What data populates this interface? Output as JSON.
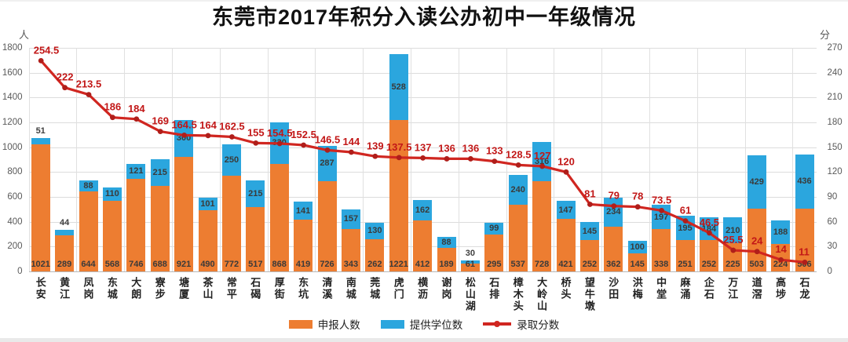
{
  "title": "东莞市2017年积分入读公办初中一年级情况",
  "left_axis": {
    "unit": "人",
    "min": 0,
    "max": 1800,
    "step": 200,
    "ticks": [
      "1800",
      "1600",
      "1400",
      "1200",
      "1000",
      "800",
      "600",
      "400",
      "200",
      "0"
    ]
  },
  "right_axis": {
    "unit": "分",
    "min": 0,
    "max": 270,
    "step": 30,
    "ticks": [
      "270",
      "240",
      "210",
      "180",
      "150",
      "120",
      "90",
      "60",
      "30",
      "0"
    ]
  },
  "colors": {
    "applicants": "#ED7D31",
    "seats": "#2BA6DE",
    "score_line": "#D02620",
    "score_marker": "#B01E1A",
    "score_label": "#C21717"
  },
  "legend": [
    {
      "label": "申报人数",
      "type": "bar",
      "color": "#ED7D31"
    },
    {
      "label": "提供学位数",
      "type": "bar",
      "color": "#2BA6DE"
    },
    {
      "label": "录取分数",
      "type": "line",
      "color": "#D02620"
    }
  ],
  "chart_data": {
    "type": "combo-stacked-bar-line",
    "categories": [
      "长安",
      "黄江",
      "凤岗",
      "东城",
      "大朗",
      "寮步",
      "塘厦",
      "茶山",
      "常平",
      "石碣",
      "厚街",
      "东坑",
      "清溪",
      "南城",
      "莞城",
      "虎门",
      "横沥",
      "谢岗",
      "松山湖",
      "石排",
      "樟木头",
      "大岭山",
      "桥头",
      "望牛墩",
      "沙田",
      "洪梅",
      "中堂",
      "麻涌",
      "企石",
      "万江",
      "道滘",
      "高埗",
      "石龙"
    ],
    "series": [
      {
        "name": "申报人数",
        "type": "bar",
        "stacked": true,
        "axis": "left",
        "values": [
          1021,
          289,
          644,
          568,
          746,
          688,
          921,
          490,
          772,
          517,
          868,
          419,
          726,
          343,
          262,
          1221,
          412,
          189,
          61,
          295,
          537,
          728,
          421,
          252,
          362,
          145,
          338,
          251,
          252,
          225,
          503,
          224,
          506
        ]
      },
      {
        "name": "提供学位数",
        "type": "bar",
        "stacked": true,
        "axis": "left",
        "values": [
          51,
          44,
          88,
          110,
          121,
          215,
          300,
          101,
          250,
          215,
          330,
          141,
          287,
          157,
          130,
          528,
          162,
          88,
          30,
          99,
          240,
          316,
          147,
          145,
          234,
          100,
          197,
          195,
          184,
          210,
          429,
          188,
          436
        ]
      },
      {
        "name": "录取分数",
        "type": "line",
        "axis": "right",
        "values": [
          254.5,
          222,
          213.5,
          186,
          184,
          169,
          164.5,
          164,
          162.5,
          155,
          154.5,
          152.5,
          146.5,
          144,
          139,
          137.5,
          137,
          136,
          136,
          133,
          128.5,
          127,
          120,
          81,
          79,
          78,
          73.5,
          61,
          46.5,
          25.5,
          24,
          14,
          11
        ]
      }
    ],
    "left_ylim": [
      0,
      1800
    ],
    "right_ylim": [
      0,
      270
    ],
    "grid": true,
    "legend_position": "bottom"
  }
}
